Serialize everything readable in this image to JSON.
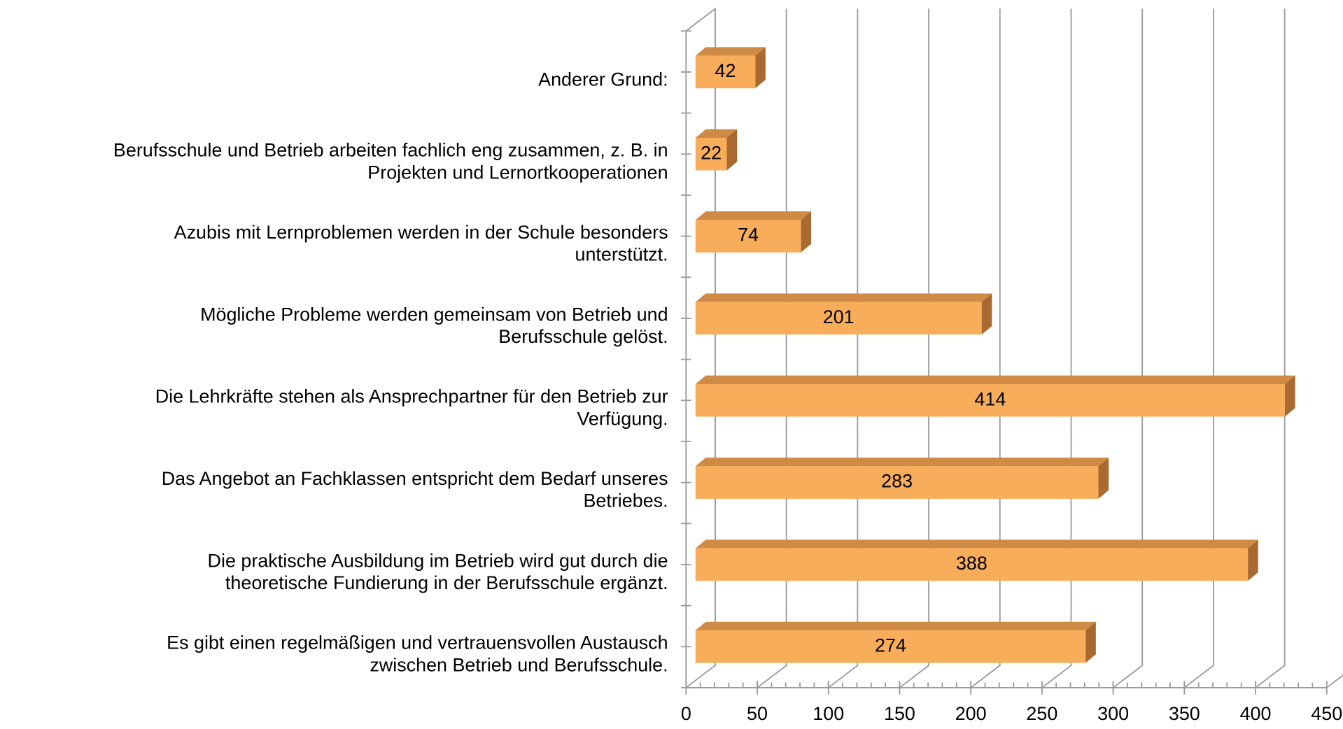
{
  "chart_data": {
    "type": "bar3d_horizontal",
    "categories": [
      "Anderer Grund:",
      "Berufsschule und Betrieb arbeiten fachlich eng zusammen, z. B. in\nProjekten und Lernortkooperationen",
      "Azubis mit Lernproblemen werden in der Schule besonders\nunterstützt.",
      "Mögliche Probleme werden gemeinsam von Betrieb und\nBerufsschule gelöst.",
      "Die Lehrkräfte stehen als Ansprechpartner für den Betrieb zur\nVerfügung.",
      "Das Angebot an Fachklassen entspricht dem Bedarf unseres\nBetriebes.",
      "Die praktische Ausbildung im Betrieb wird gut durch die\ntheoretische Fundierung in der Berufsschule ergänzt.",
      "Es gibt einen regelmäßigen und vertrauensvollen Austausch\nzwischen Betrieb und Berufsschule."
    ],
    "values": [
      42,
      22,
      74,
      201,
      414,
      283,
      388,
      274
    ],
    "color": "#f8ad5a",
    "xlim": [
      0,
      450
    ],
    "xticks": [
      0,
      50,
      100,
      150,
      200,
      250,
      300,
      350,
      400,
      450
    ],
    "grid": true
  }
}
